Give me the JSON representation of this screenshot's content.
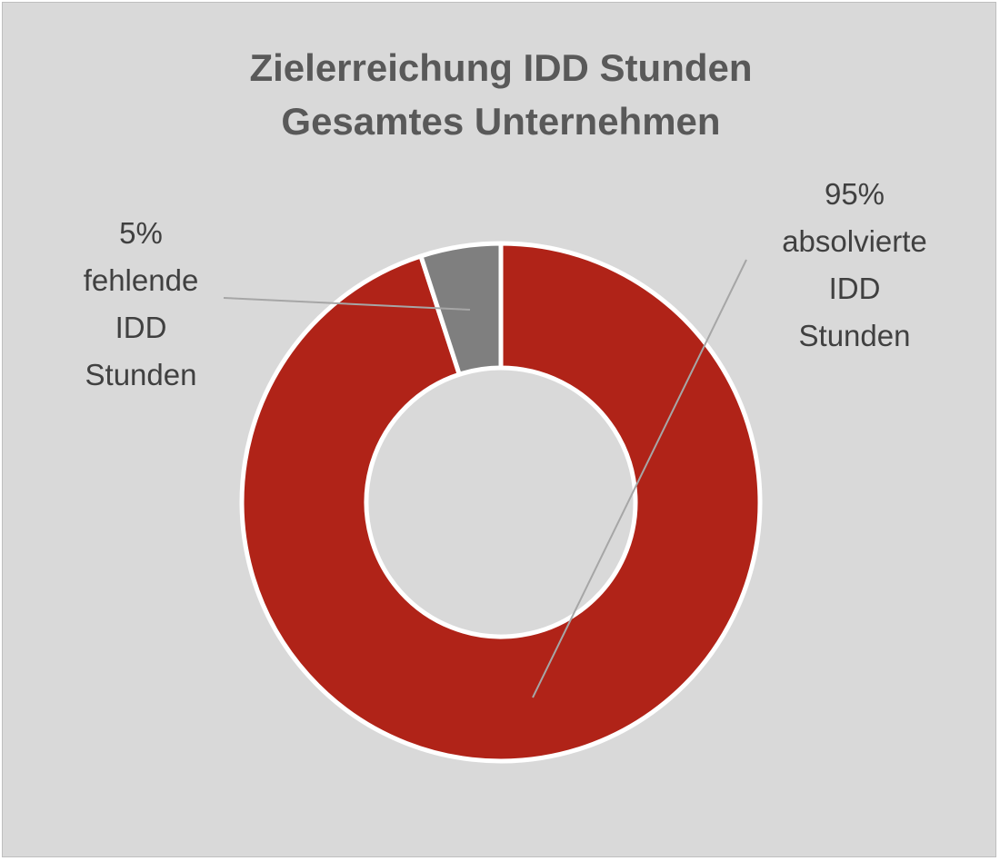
{
  "chart_data": {
    "type": "pie",
    "variant": "doughnut",
    "title": [
      "Zielerreichung IDD Stunden",
      "Gesamtes Unternehmen"
    ],
    "slices": [
      {
        "name": "absolvierte IDD Stunden",
        "value": 95,
        "label_lines": [
          "95%",
          "absolvierte",
          "IDD",
          "Stunden"
        ],
        "color": "#b02318"
      },
      {
        "name": "fehlende IDD Stunden",
        "value": 5,
        "label_lines": [
          "5%",
          "fehlende",
          "IDD",
          "Stunden"
        ],
        "color": "#7f7f7f"
      }
    ],
    "start_angle": "12 o'clock",
    "direction": "clockwise",
    "background_color": "#d9d9d9",
    "separator_color": "#ffffff",
    "legend": "none"
  }
}
